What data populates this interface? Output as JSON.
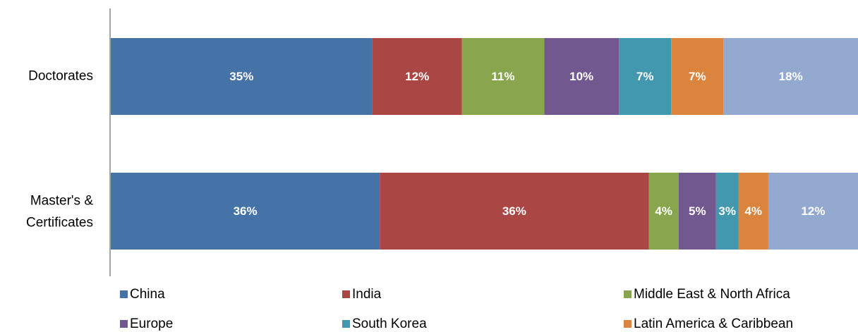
{
  "chart_data": {
    "type": "stacked-bar-horizontal",
    "categories": [
      "Doctorates",
      "Master's & Certificates"
    ],
    "xlim": [
      0,
      100
    ],
    "series": [
      {
        "name": "China",
        "color": "#4572a7",
        "values": [
          35,
          36
        ],
        "value_labels": [
          "35%",
          "36%"
        ]
      },
      {
        "name": "India",
        "color": "#aa4643",
        "values": [
          12,
          36
        ],
        "value_labels": [
          "12%",
          "36%"
        ]
      },
      {
        "name": "Middle East & North Africa",
        "color": "#89a54e",
        "values": [
          11,
          4
        ],
        "value_labels": [
          "11%",
          "4%"
        ]
      },
      {
        "name": "Europe",
        "color": "#71588f",
        "values": [
          10,
          5
        ],
        "value_labels": [
          "10%",
          "5%"
        ]
      },
      {
        "name": "South Korea",
        "color": "#4198af",
        "values": [
          7,
          3
        ],
        "value_labels": [
          "7%",
          "3%"
        ]
      },
      {
        "name": "Latin America & Caribbean",
        "color": "#db843d",
        "values": [
          7,
          4
        ],
        "value_labels": [
          "7%",
          "4%"
        ]
      },
      {
        "color": "#93a9cf",
        "values": [
          18,
          12
        ],
        "value_labels": [
          "18%",
          "12%"
        ]
      }
    ]
  }
}
